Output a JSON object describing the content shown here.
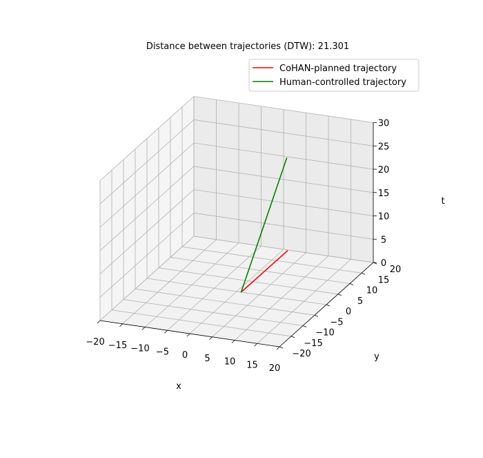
{
  "chart_data": {
    "type": "line",
    "projection": "3d",
    "title": "Distance between trajectories (DTW): 21.301",
    "xlabel": "x",
    "ylabel": "y",
    "zlabel": "t",
    "xlim": [
      -20,
      20
    ],
    "ylim": [
      -20,
      20
    ],
    "zlim": [
      0,
      30
    ],
    "x_ticks": [
      -20,
      -15,
      -10,
      -5,
      0,
      5,
      10,
      15,
      20
    ],
    "y_ticks": [
      -20,
      -15,
      -10,
      -5,
      0,
      5,
      10,
      15,
      20
    ],
    "z_ticks": [
      0,
      5,
      10,
      15,
      20,
      25,
      30
    ],
    "grid": true,
    "legend_position": "top-right",
    "series": [
      {
        "name": "CoHAN-planned trajectory",
        "color": "#ff0000",
        "points": [
          {
            "x": 1.0,
            "y": 0.3,
            "t": 0
          },
          {
            "x": 11.0,
            "y": 0.6,
            "t": 10
          }
        ]
      },
      {
        "name": "Human-controlled trajectory",
        "color": "#008000",
        "points": [
          {
            "x": 1.0,
            "y": 0.0,
            "t": 0
          },
          {
            "x": 11.0,
            "y": 0.3,
            "t": 30
          }
        ]
      }
    ]
  }
}
